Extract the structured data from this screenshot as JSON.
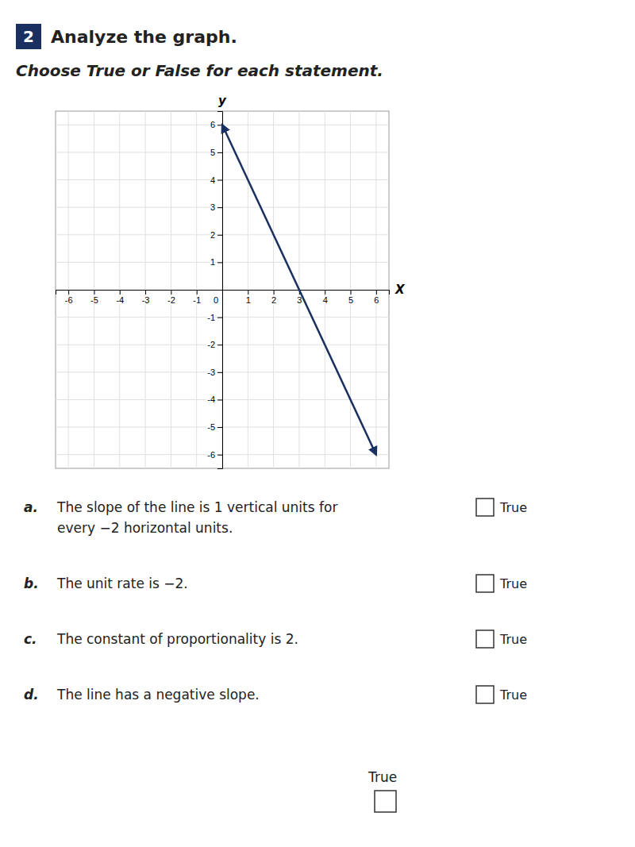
{
  "chart_data": {
    "type": "line",
    "title": "Analyze the graph.",
    "subtitle": "Choose True or False for each statement.",
    "badge": "2",
    "x": [
      0,
      6
    ],
    "values": [
      6,
      -6
    ],
    "color": "#1a3060",
    "line_style": "solid",
    "xlabel": "X",
    "ylabel": "y",
    "xlim": [
      -6.5,
      6.5
    ],
    "ylim": [
      -6.5,
      6.5
    ],
    "xticks": [
      -6,
      -5,
      -4,
      -3,
      -2,
      -1,
      0,
      1,
      2,
      3,
      4,
      5,
      6
    ],
    "yticks": [
      -6,
      -5,
      -4,
      -3,
      -2,
      -1,
      1,
      2,
      3,
      4,
      5,
      6
    ],
    "grid": true,
    "statements": [
      {
        "label": "a.",
        "lines": [
          "The slope of the line is 1 vertical units for",
          "every −2 horizontal units."
        ]
      },
      {
        "label": "b.",
        "lines": [
          "The unit rate is −2."
        ]
      },
      {
        "label": "c.",
        "lines": [
          "The constant of proportionality is 2."
        ]
      },
      {
        "label": "d.",
        "lines": [
          "The line has a negative slope."
        ]
      }
    ],
    "choice_label": "True"
  }
}
